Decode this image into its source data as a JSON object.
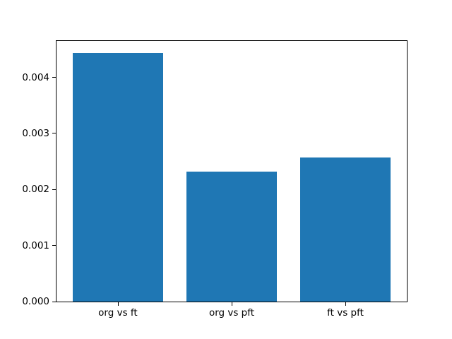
{
  "chart_data": {
    "type": "bar",
    "categories": [
      "org vs ft",
      "org vs pft",
      "ft vs pft"
    ],
    "values": [
      0.00444,
      0.00232,
      0.00257
    ],
    "bar_color": "#1f77b4",
    "bar_width": 0.8,
    "xlim": [
      -0.54,
      2.54
    ],
    "ylim": [
      0,
      0.004649
    ],
    "yticks": [
      0,
      0.001,
      0.002,
      0.003,
      0.004
    ],
    "ytick_labels": [
      "0.000",
      "0.001",
      "0.002",
      "0.003",
      "0.004"
    ],
    "grid": false,
    "legend": "none",
    "background_color": "#ffffff",
    "spine_color": "#000000",
    "text_color": "#000000"
  }
}
